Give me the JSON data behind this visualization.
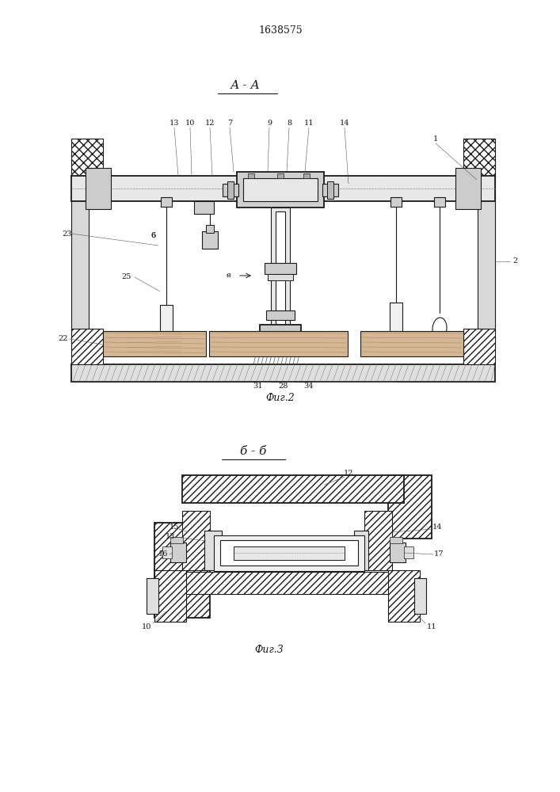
{
  "title": "1638575",
  "bg_color": "#ffffff",
  "lc": "#1a1a1a",
  "fig2_caption": "Фиг.2",
  "fig3_caption": "Фиг.3",
  "fig2_label": "А-А",
  "fig3_label": "б-б"
}
